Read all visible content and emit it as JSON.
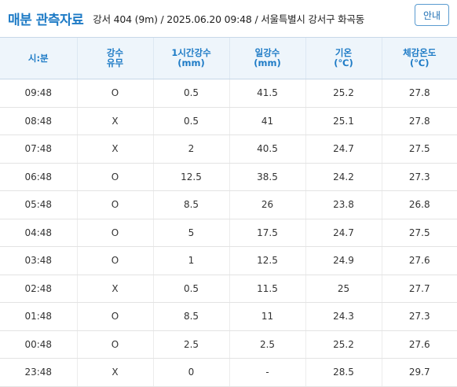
{
  "header": {
    "title": "매분 관측자료",
    "station": "강서 404 (9m) / 2025.06.20 09:48 / 서울특별시 강서구 화곡동",
    "info_label": "안내"
  },
  "columns": [
    {
      "l1": "시:분",
      "l2": ""
    },
    {
      "l1": "강수",
      "l2": "유무"
    },
    {
      "l1": "1시간강수",
      "l2": "(mm)"
    },
    {
      "l1": "일강수",
      "l2": "(mm)"
    },
    {
      "l1": "기온",
      "l2": "(℃)"
    },
    {
      "l1": "체감온도",
      "l2": "(℃)"
    }
  ],
  "rows": [
    [
      "09:48",
      "O",
      "0.5",
      "41.5",
      "25.2",
      "27.8"
    ],
    [
      "08:48",
      "X",
      "0.5",
      "41",
      "25.1",
      "27.8"
    ],
    [
      "07:48",
      "X",
      "2",
      "40.5",
      "24.7",
      "27.5"
    ],
    [
      "06:48",
      "O",
      "12.5",
      "38.5",
      "24.2",
      "27.3"
    ],
    [
      "05:48",
      "O",
      "8.5",
      "26",
      "23.8",
      "26.8"
    ],
    [
      "04:48",
      "O",
      "5",
      "17.5",
      "24.7",
      "27.5"
    ],
    [
      "03:48",
      "O",
      "1",
      "12.5",
      "24.9",
      "27.6"
    ],
    [
      "02:48",
      "X",
      "0.5",
      "11.5",
      "25",
      "27.7"
    ],
    [
      "01:48",
      "O",
      "8.5",
      "11",
      "24.3",
      "27.3"
    ],
    [
      "00:48",
      "O",
      "2.5",
      "2.5",
      "25.2",
      "27.6"
    ],
    [
      "23:48",
      "X",
      "0",
      "-",
      "28.5",
      "29.7"
    ]
  ]
}
